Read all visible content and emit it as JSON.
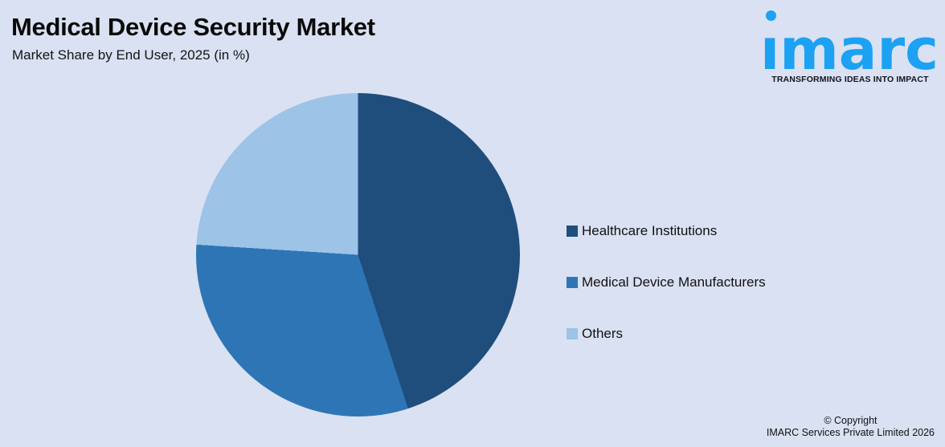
{
  "header": {
    "title": "Medical Device Security Market",
    "subtitle": "Market Share by End User, 2025 (in %)"
  },
  "logo": {
    "brand": "imarc",
    "brand_display": "ımarc",
    "tagline": "TRANSFORMING IDEAS INTO IMPACT",
    "brand_color": "#1da1f2",
    "tagline_color": "#14141f"
  },
  "chart_data": {
    "type": "pie",
    "title": "Medical Device Security Market",
    "subtitle": "Market Share by End User, 2025 (in %)",
    "unit": "%",
    "start_angle_deg": 0,
    "direction": "clockwise",
    "legend_position": "right",
    "categories": [
      "Healthcare Institutions",
      "Medical Device Manufacturers",
      "Others"
    ],
    "values": [
      45,
      31,
      24
    ],
    "colors": [
      "#1f4e7c",
      "#2e75b6",
      "#9dc3e6"
    ]
  },
  "footer": {
    "copyright_line1": "© Copyright",
    "copyright_line2": "IMARC Services Private Limited 2026"
  },
  "colors": {
    "background": "#d9e1f2",
    "text": "#0b0b0b"
  }
}
